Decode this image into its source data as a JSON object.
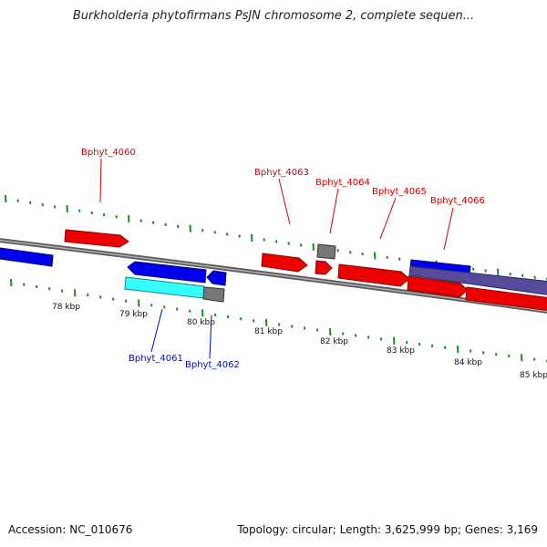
{
  "title": "Burkholderia phytofirmans PsJN chromosome 2, complete sequen...",
  "footer": {
    "accession": "Accession: NC_010676",
    "topology": "Topology: circular; Length: 3,625,999 bp; Genes: 3,169"
  },
  "colors": {
    "forward_gene": "#ff0000",
    "reverse_gene": "#0000ee",
    "label_forward": "#cc0000",
    "label_reverse": "#0000cc",
    "cds_cyan": "#33ffff",
    "gray_feature": "#777777",
    "purple_feature": "#554b9a",
    "tick": "#1a8c1a"
  },
  "scale_labels": [
    "78 kbp",
    "79 kbp",
    "80 kbp",
    "81 kbp",
    "82 kbp",
    "83 kbp",
    "84 kbp",
    "85 kbp"
  ],
  "gene_labels": [
    {
      "text": "Bphyt_4060",
      "strand": "forward"
    },
    {
      "text": "Bphyt_4061",
      "strand": "reverse"
    },
    {
      "text": "Bphyt_4062",
      "strand": "reverse"
    },
    {
      "text": "Bphyt_4063",
      "strand": "forward"
    },
    {
      "text": "Bphyt_4064",
      "strand": "forward"
    },
    {
      "text": "Bphyt_4065",
      "strand": "forward"
    },
    {
      "text": "Bphyt_4066",
      "strand": "forward"
    }
  ]
}
